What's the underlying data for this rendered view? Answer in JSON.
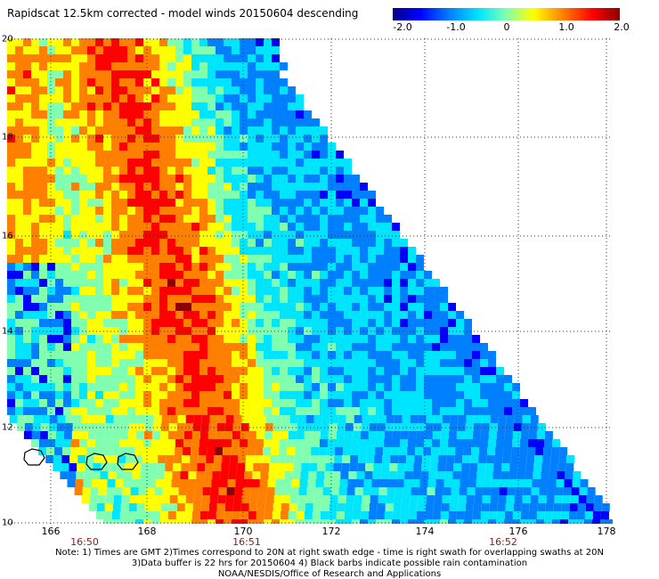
{
  "title": "Rapidscat 12.5km corrected - model winds 20150604 descending",
  "colorbar": {
    "labels": [
      "-2.0",
      "-1.0",
      "0",
      "1.0",
      "2.0"
    ],
    "colors": [
      "#00008b",
      "#0000ff",
      "#0080ff",
      "#00e5ff",
      "#80ffb0",
      "#ffff00",
      "#ff8000",
      "#ff0000",
      "#8b0000"
    ]
  },
  "axes": {
    "x_ticks": [
      "166",
      "168",
      "170",
      "172",
      "174",
      "176",
      "178"
    ],
    "y_ticks": [
      "20",
      "18",
      "16",
      "14",
      "12",
      "10"
    ]
  },
  "times": [
    "16:50",
    "16:51",
    "16:52"
  ],
  "notes": [
    "Note: 1) Times are GMT 2)Times correspond to 20N at right swath edge - time is right swath for overlapping swaths at 20N",
    "3)Data buffer is 22 hrs for 20150604 4) Black barbs indicate possible rain contamination",
    "NOAA/NESDIS/Office of Research and Applications"
  ]
}
